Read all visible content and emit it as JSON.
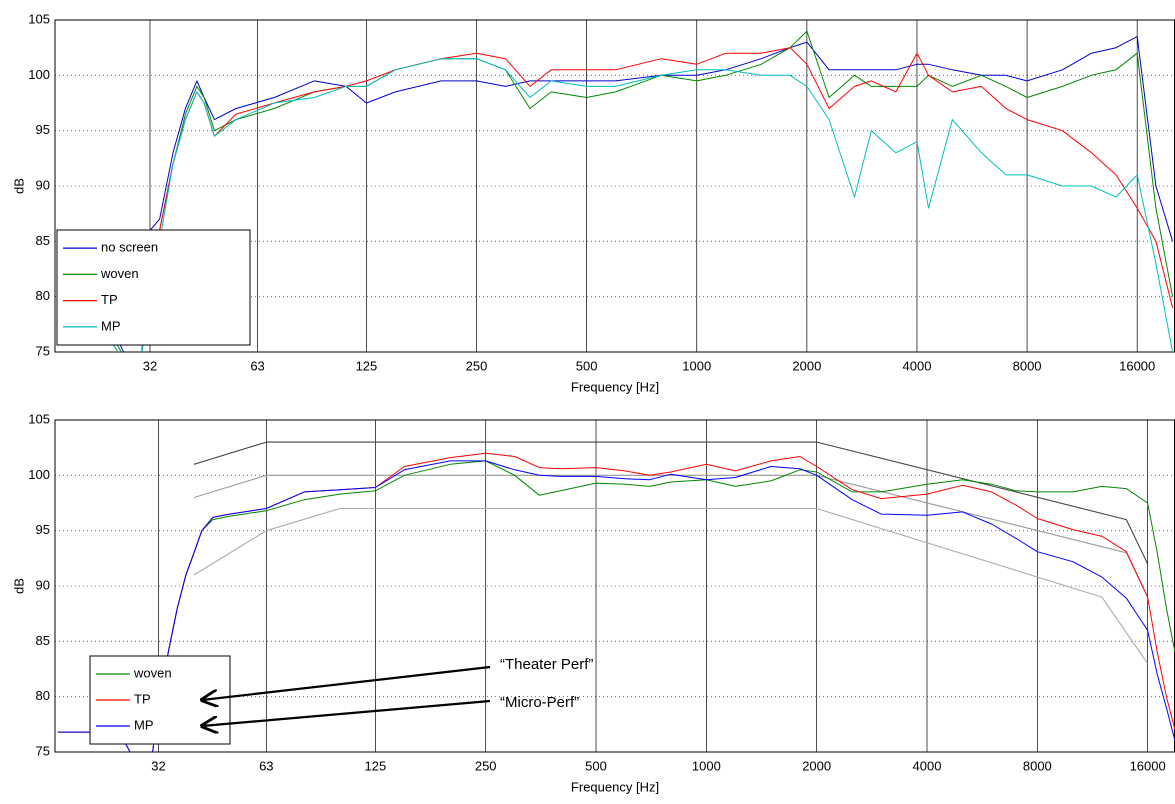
{
  "chart_data": [
    {
      "type": "line",
      "xlabel": "Frequency [Hz]",
      "ylabel": "dB",
      "xscale": "log",
      "grid": true,
      "legend": "lower left",
      "xlim": [
        17.6,
        20300
      ],
      "xticks": [
        32,
        63,
        125,
        250,
        500,
        1000,
        2000,
        4000,
        8000,
        16000
      ],
      "ylim": [
        75,
        105
      ],
      "yticks": [
        75,
        80,
        85,
        90,
        95,
        100,
        105
      ],
      "x": [
        18,
        25,
        30,
        32,
        34,
        37,
        40,
        43,
        45,
        48,
        55,
        70,
        90,
        110,
        125,
        150,
        200,
        250,
        300,
        350,
        400,
        500,
        600,
        800,
        1000,
        1200,
        1500,
        1800,
        2000,
        2300,
        2700,
        3000,
        3500,
        4000,
        4300,
        5000,
        6000,
        7000,
        8000,
        10000,
        12000,
        14000,
        16000,
        18000,
        20000
      ],
      "series": [
        {
          "name": "no screen",
          "color": "#0000cc",
          "values": [
            77.4,
            77.4,
            72,
            86,
            87,
            93,
            97,
            99.5,
            98,
            96,
            97,
            98,
            99.5,
            99,
            97.5,
            98.5,
            99.5,
            99.5,
            99,
            99.5,
            99.5,
            99.5,
            99.5,
            100,
            100,
            100.5,
            101.5,
            102.5,
            103,
            100.5,
            100.5,
            100.5,
            100.5,
            101,
            101,
            100.5,
            100,
            100,
            99.5,
            100.5,
            102,
            102.5,
            103.5,
            90,
            85
          ]
        },
        {
          "name": "woven",
          "color": "#008800",
          "values": [
            76.7,
            76.7,
            72,
            85,
            86,
            92,
            96.5,
            99,
            98,
            95,
            96,
            97,
            98.5,
            99,
            99,
            100.5,
            101.5,
            101.5,
            100.5,
            97,
            98.5,
            98,
            98.5,
            100,
            99.5,
            100,
            101,
            102.5,
            104,
            98,
            100,
            99,
            99,
            99,
            100,
            99,
            100,
            99,
            98,
            99,
            100,
            100.5,
            102,
            88,
            80
          ]
        },
        {
          "name": "TP",
          "color": "#ff0000",
          "values": [
            76,
            76,
            72,
            85,
            86,
            92,
            96,
            98.5,
            97.5,
            94.5,
            96.5,
            97.5,
            98.5,
            99,
            99.5,
            100.5,
            101.5,
            102,
            101.5,
            99,
            100.5,
            100.5,
            100.5,
            101.5,
            101,
            102,
            102,
            102.5,
            101,
            97,
            99,
            99.5,
            98.5,
            102,
            100,
            98.5,
            99,
            97,
            96,
            95,
            93,
            91,
            88,
            85,
            79
          ]
        },
        {
          "name": "MP",
          "color": "#00bfbf",
          "values": [
            76,
            76,
            72,
            84,
            85,
            92,
            96,
            98.5,
            97.5,
            94.5,
            96,
            97.5,
            98,
            99,
            99,
            100.5,
            101.5,
            101.5,
            100.5,
            98,
            99.5,
            99,
            99,
            100,
            100.5,
            100.5,
            100,
            100,
            99,
            96,
            89,
            95,
            93,
            94,
            88,
            96,
            93,
            91,
            91,
            90,
            90,
            89,
            91,
            83,
            75
          ]
        }
      ]
    },
    {
      "type": "line",
      "xlabel": "Frequency [Hz]",
      "ylabel": "dB",
      "xscale": "log",
      "grid": true,
      "legend": "lower left",
      "xlim": [
        16.7,
        19000
      ],
      "xticks": [
        32,
        63,
        125,
        250,
        500,
        1000,
        2000,
        4000,
        8000,
        16000
      ],
      "ylim": [
        75,
        105
      ],
      "yticks": [
        75,
        80,
        85,
        90,
        95,
        100,
        105
      ],
      "x": [
        17,
        25,
        30,
        32,
        34,
        36,
        38,
        40,
        42,
        45,
        50,
        63,
        80,
        100,
        125,
        150,
        200,
        250,
        300,
        350,
        400,
        500,
        600,
        700,
        800,
        1000,
        1200,
        1500,
        1800,
        2000,
        2500,
        3000,
        4000,
        5000,
        6000,
        7000,
        8000,
        10000,
        12000,
        14000,
        16000,
        17000,
        18000,
        19000
      ],
      "series": [
        {
          "name": "woven",
          "color": "#008800",
          "values": [
            76.8,
            76.8,
            72,
            79,
            84,
            88,
            91,
            93,
            95,
            96,
            96.3,
            96.8,
            97.8,
            98.3,
            98.6,
            100,
            101,
            101.3,
            100,
            98.2,
            98.6,
            99.3,
            99.2,
            99,
            99.4,
            99.6,
            99,
            99.5,
            100.5,
            100.3,
            98.5,
            98.5,
            99.2,
            99.6,
            99.2,
            98.6,
            98.5,
            98.5,
            99,
            98.8,
            97.5,
            93,
            88,
            84
          ]
        },
        {
          "name": "TP",
          "color": "#ff0000",
          "values": [
            76.8,
            76.8,
            72,
            79,
            84,
            88,
            91,
            93,
            95,
            96.2,
            96.5,
            97,
            98.5,
            98.7,
            98.9,
            100.8,
            101.6,
            102,
            101.7,
            100.7,
            100.6,
            100.7,
            100.4,
            100,
            100.3,
            101,
            100.4,
            101.3,
            101.7,
            100.8,
            98.7,
            97.9,
            98.3,
            99.1,
            98.5,
            97.3,
            96.1,
            95.1,
            94.5,
            93.1,
            89,
            84,
            80,
            77
          ]
        },
        {
          "name": "MP",
          "color": "#0000ff",
          "values": [
            76.8,
            76.8,
            72,
            79,
            84,
            88,
            91,
            93,
            95,
            96.2,
            96.5,
            97,
            98.5,
            98.7,
            98.9,
            100.5,
            101.3,
            101.3,
            100.5,
            100,
            99.9,
            99.9,
            99.7,
            99.6,
            100.1,
            99.6,
            99.8,
            100.8,
            100.6,
            100,
            97.8,
            96.5,
            96.4,
            96.7,
            95.6,
            94.3,
            93.1,
            92.2,
            90.8,
            88.9,
            86,
            82,
            79,
            76
          ]
        }
      ],
      "reference_lines": [
        {
          "color": "#444444",
          "x": [
            40,
            63,
            2000,
            14000,
            16000
          ],
          "values": [
            101,
            103,
            103,
            96,
            92
          ]
        },
        {
          "color": "#999999",
          "x": [
            40,
            63,
            2000,
            14000,
            16000
          ],
          "values": [
            98,
            100,
            100,
            93,
            89
          ]
        },
        {
          "color": "#aaaaaa",
          "x": [
            40,
            63,
            100,
            2000,
            12000,
            16000
          ],
          "values": [
            91,
            95,
            97,
            97,
            89,
            83
          ]
        }
      ],
      "annotations": [
        "“Theater Perf”",
        "“Micro-Perf”"
      ]
    }
  ]
}
